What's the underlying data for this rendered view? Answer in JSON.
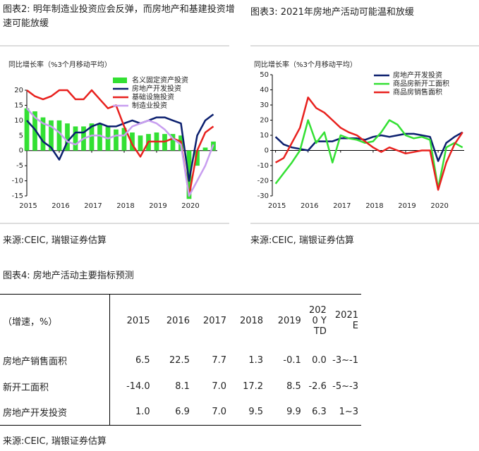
{
  "chart_data": [
    {
      "type": "combo",
      "title": "图表2: 明年制造业投资应会反弹，而房地产和基建投资增速可能放缓",
      "ylabel": "同比增长率（%3个月移动平均）",
      "source": "来源:CEIC, 瑞银证券估算",
      "x": [
        2015,
        2015.25,
        2015.5,
        2015.75,
        2016,
        2016.25,
        2016.5,
        2016.75,
        2017,
        2017.25,
        2017.5,
        2017.75,
        2018,
        2018.25,
        2018.5,
        2018.75,
        2019,
        2019.25,
        2019.5,
        2019.75,
        2020,
        2020.25,
        2020.5,
        2020.75
      ],
      "xlim": [
        2015,
        2020.87
      ],
      "xticks": [
        2015,
        2016,
        2017,
        2018,
        2019,
        2020
      ],
      "ylim": [
        -15,
        20
      ],
      "yticks": [
        20,
        15,
        10,
        5,
        0,
        -5,
        -10,
        -15
      ],
      "series": [
        {
          "name": "名义固定资产投资",
          "kind": "bar",
          "color": "#33e033",
          "values": [
            14,
            13,
            11,
            10,
            10,
            9,
            8,
            8,
            9,
            9,
            8,
            7,
            7.5,
            6,
            5,
            5.5,
            6,
            5.5,
            5.5,
            5,
            -16,
            -5,
            1,
            3
          ]
        },
        {
          "name": "房地产开发投资",
          "kind": "line",
          "color": "#0b1f6e",
          "values": [
            10,
            7,
            3,
            1,
            -3,
            3,
            6,
            6,
            8,
            9,
            8,
            8,
            9,
            10,
            9,
            10,
            11,
            11,
            10,
            9,
            -10,
            5,
            10,
            12
          ]
        },
        {
          "name": "基础设施投资",
          "kind": "line",
          "color": "#e8211e",
          "values": [
            20,
            18,
            17,
            18,
            20,
            20,
            17,
            17,
            20,
            17,
            14,
            15,
            8,
            2,
            -2,
            3,
            3,
            3,
            4,
            3,
            -15,
            0,
            6,
            8
          ]
        },
        {
          "name": "制造业投资",
          "kind": "line",
          "color": "#c89ef0",
          "values": [
            14,
            11,
            9,
            8,
            6,
            3,
            2,
            4,
            5,
            5,
            4,
            5,
            5,
            8,
            9,
            10,
            9,
            7,
            4,
            2,
            -15,
            -10,
            -5,
            2
          ]
        }
      ]
    },
    {
      "type": "line",
      "title": "图表3: 2021年房地产活动可能温和放缓",
      "ylabel": "同比增长率（%3个月移动平均）",
      "source": "来源:CEIC, 瑞银证券估算",
      "x": [
        2015,
        2015.25,
        2015.5,
        2015.75,
        2016,
        2016.25,
        2016.5,
        2016.75,
        2017,
        2017.25,
        2017.5,
        2017.75,
        2018,
        2018.25,
        2018.5,
        2018.75,
        2019,
        2019.25,
        2019.5,
        2019.75,
        2020,
        2020.25,
        2020.5,
        2020.75
      ],
      "xlim": [
        2014.9,
        2020.8
      ],
      "xticks": [
        2015,
        2016,
        2017,
        2018,
        2019,
        2020
      ],
      "ylim": [
        -30,
        50
      ],
      "yticks": [
        50,
        40,
        30,
        20,
        10,
        0,
        -10,
        -20,
        -30
      ],
      "series": [
        {
          "name": "房地产开发投资",
          "color": "#0b1f6e",
          "values": [
            9,
            4,
            2,
            1,
            0,
            6,
            6,
            6,
            8,
            8,
            8,
            7,
            9,
            10,
            9,
            10,
            11,
            11,
            10,
            9,
            -7,
            5,
            9,
            12
          ]
        },
        {
          "name": "商品房新开工面积",
          "color": "#33e033",
          "values": [
            -22,
            -15,
            -8,
            0,
            20,
            5,
            12,
            -8,
            10,
            8,
            7,
            5,
            6,
            12,
            20,
            17,
            10,
            8,
            9,
            7,
            -25,
            2,
            5,
            2
          ]
        },
        {
          "name": "商品房销售面积",
          "color": "#e8211e",
          "values": [
            -8,
            -5,
            5,
            15,
            35,
            28,
            25,
            20,
            15,
            12,
            10,
            6,
            2,
            -1,
            2,
            0,
            -2,
            -1,
            0,
            0,
            -26,
            -8,
            4,
            12
          ]
        }
      ]
    }
  ],
  "table": {
    "title": "图表4: 房地产活动主要指标预测",
    "header": [
      "（增速，%）",
      "2015",
      "2016",
      "2017",
      "2018",
      "2019",
      "2020 YTD",
      "2021E"
    ],
    "rows": [
      [
        "房地产销售面积",
        "6.5",
        "22.5",
        "7.7",
        "1.3",
        "-0.1",
        "0.0",
        "-3~-1"
      ],
      [
        "新开工面积",
        "-14.0",
        "8.1",
        "7.0",
        "17.2",
        "8.5",
        "-2.6",
        "-5~-3"
      ],
      [
        "房地产开发投资",
        "1.0",
        "6.9",
        "7.0",
        "9.5",
        "9.9",
        "6.3",
        "1~3"
      ]
    ],
    "source": "来源:CEIC, 瑞银证券估算"
  }
}
